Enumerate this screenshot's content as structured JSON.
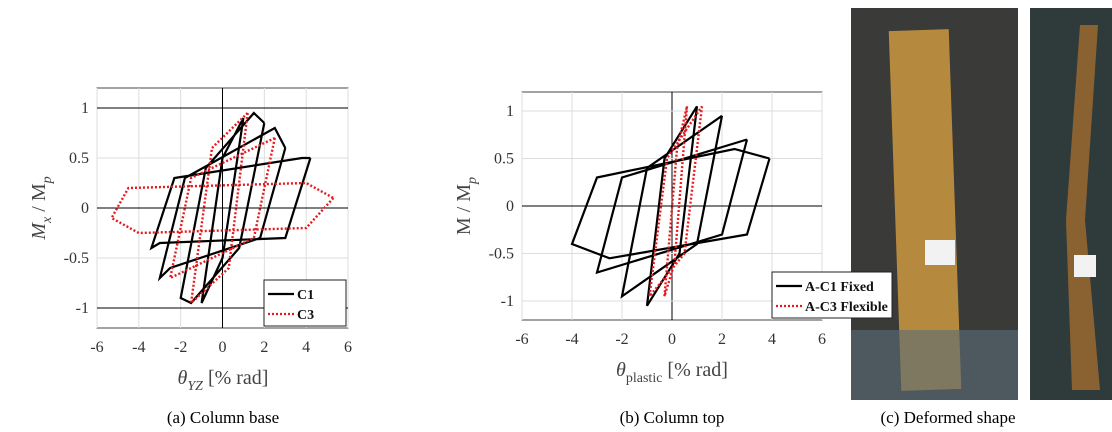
{
  "chart_data": [
    {
      "type": "line",
      "caption": "(a)   Column base",
      "xlabel": [
        "θ",
        "YZ",
        " [% rad]"
      ],
      "ylabel": [
        "M",
        "x",
        " / M",
        "p"
      ],
      "xlim": [
        -6,
        6
      ],
      "ylim": [
        -1.2,
        1.2
      ],
      "xticks": [
        -6,
        -4,
        -2,
        0,
        2,
        4,
        6
      ],
      "yticks": [
        -1,
        -0.5,
        0,
        0.5,
        1
      ],
      "grid": true,
      "legend": "lower right",
      "series": [
        {
          "name": "C1",
          "color": "#000000",
          "style": "solid",
          "x": [
            1,
            0,
            -1,
            0,
            1,
            null,
            2,
            0.8,
            -1.5,
            -2,
            -0.8,
            1.5,
            2,
            null,
            3,
            1.8,
            -2.5,
            -3,
            -1.8,
            2.5,
            3,
            null,
            4.2,
            3,
            -3,
            -3.4,
            -2.3,
            3.8,
            4.2
          ],
          "y": [
            0.9,
            -0.5,
            -0.95,
            0.5,
            0.9,
            null,
            0.85,
            -0.4,
            -0.95,
            -0.9,
            0.4,
            0.95,
            0.85,
            null,
            0.6,
            -0.3,
            -0.6,
            -0.7,
            0.3,
            0.8,
            0.6,
            null,
            0.5,
            -0.3,
            -0.35,
            -0.4,
            0.3,
            0.5,
            0.5
          ]
        },
        {
          "name": "C3",
          "color": "#e8191c",
          "style": "dotted",
          "x": [
            1.2,
            0.3,
            -1.5,
            -0.5,
            1.2,
            null,
            2.5,
            1.5,
            -2.5,
            -1.5,
            2.5,
            null,
            5.3,
            4,
            -4,
            -5.3,
            -4.5,
            4,
            5.3
          ],
          "y": [
            0.95,
            -0.6,
            -0.95,
            0.6,
            0.95,
            null,
            0.7,
            -0.3,
            -0.7,
            0.3,
            0.7,
            null,
            0.1,
            -0.2,
            -0.25,
            -0.1,
            0.2,
            0.25,
            0.1
          ]
        }
      ]
    },
    {
      "type": "line",
      "caption": "(b) Column top",
      "xlabel": [
        "θ",
        "plastic",
        " [% rad]"
      ],
      "ylabel": [
        "M / M",
        "p"
      ],
      "xlim": [
        -6,
        6
      ],
      "ylim": [
        -1.2,
        1.2
      ],
      "xticks": [
        -6,
        -4,
        -2,
        0,
        2,
        4,
        6
      ],
      "yticks": [
        -1,
        -0.5,
        0,
        0.5,
        1
      ],
      "grid": true,
      "legend": "lower right",
      "series": [
        {
          "name": "A-C1 Fixed",
          "color": "#000000",
          "style": "solid",
          "x": [
            1,
            0.3,
            -1,
            -0.3,
            1,
            null,
            2,
            1,
            -2,
            -1,
            2,
            null,
            3,
            2,
            -3,
            -2,
            3,
            null,
            3.9,
            3,
            -2.5,
            -4,
            -3,
            2.5,
            3.9
          ],
          "y": [
            1.05,
            -0.5,
            -1.05,
            0.5,
            1.05,
            null,
            0.95,
            -0.4,
            -0.95,
            0.4,
            0.95,
            null,
            0.7,
            -0.3,
            -0.7,
            0.3,
            0.7,
            null,
            0.5,
            -0.3,
            -0.55,
            -0.4,
            0.3,
            0.6,
            0.5
          ]
        },
        {
          "name": "A-C3 Flexible",
          "color": "#e8191c",
          "style": "dotted",
          "x": [
            0.6,
            0.1,
            -0.3,
            0.2,
            0.6,
            null,
            1.2,
            0.5,
            -0.9,
            -0.2,
            1.2
          ],
          "y": [
            1.05,
            -0.6,
            -0.95,
            0.6,
            1.05,
            null,
            1.05,
            -0.5,
            -0.95,
            0.5,
            1.05
          ]
        }
      ]
    }
  ],
  "photos": {
    "caption": "(c) Deformed shape"
  }
}
